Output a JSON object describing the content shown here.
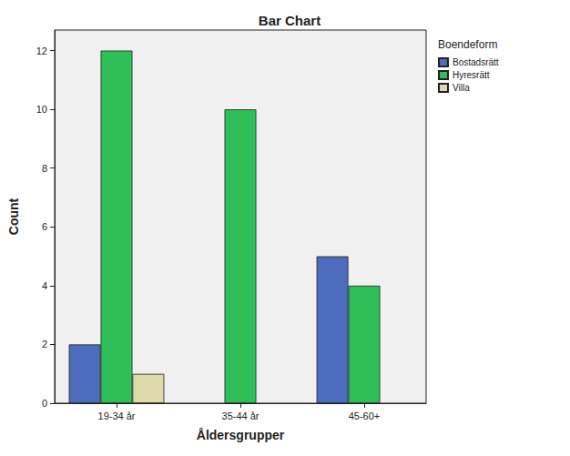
{
  "chart_data": {
    "type": "bar",
    "title": "Bar Chart",
    "x_label": "Åldersgrupper",
    "y_label": "Count",
    "legend_title": "Boendeform",
    "categories": [
      "19-34 år",
      "35-44 år",
      "45-60+"
    ],
    "series": [
      {
        "name": "Bostadsrätt",
        "color": "#4e6cbd",
        "values": [
          2,
          null,
          5
        ]
      },
      {
        "name": "Hyresrätt",
        "color": "#2fbf59",
        "values": [
          12,
          10,
          4
        ]
      },
      {
        "name": "Villa",
        "color": "#ddd9a9",
        "values": [
          1,
          null,
          null
        ]
      }
    ],
    "ylim": [
      0,
      12.7
    ],
    "yticks": [
      0,
      2,
      4,
      6,
      8,
      10,
      12
    ],
    "grid": false,
    "legend": "right"
  }
}
